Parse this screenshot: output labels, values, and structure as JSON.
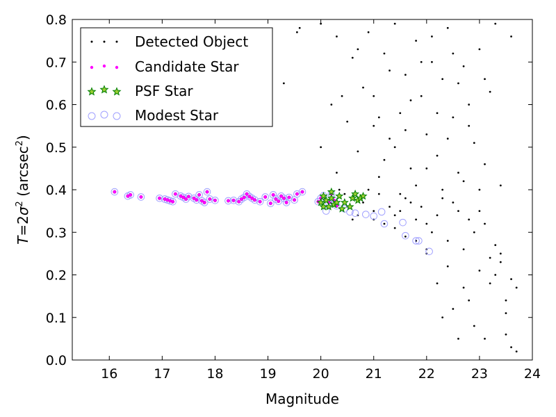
{
  "chart_data": {
    "type": "scatter",
    "xlabel": "Magnitude",
    "ylabel": {
      "prefix": "T",
      "equals": "=",
      "expr_coef": "2",
      "expr_var": "σ",
      "expr_exp": "2",
      "unit_open": " (arcsec",
      "unit_exp": "2",
      "unit_close": ")"
    },
    "xlim": [
      15.3,
      24.0
    ],
    "ylim": [
      0.0,
      0.8
    ],
    "xticks": [
      "16",
      "17",
      "18",
      "19",
      "20",
      "21",
      "22",
      "23",
      "24"
    ],
    "yticks": [
      "0.0",
      "0.1",
      "0.2",
      "0.3",
      "0.4",
      "0.5",
      "0.6",
      "0.7",
      "0.8"
    ],
    "grid": false,
    "legend_position": "upper-left",
    "legend": [
      "Detected Object",
      "Candidate Star",
      "PSF Star",
      "Modest Star"
    ],
    "colors": {
      "detected": "#000000",
      "candidate": "#ff00ff",
      "psf_edge": "#007f00",
      "psf_face": "#9acd32",
      "modest": "#9f9fff"
    },
    "series": [
      {
        "name": "Detected Object",
        "marker": "dot",
        "points": [
          [
            19.55,
            0.77
          ],
          [
            19.6,
            0.78
          ],
          [
            19.3,
            0.65
          ],
          [
            20.0,
            0.5
          ],
          [
            20.0,
            0.79
          ],
          [
            20.2,
            0.6
          ],
          [
            20.3,
            0.76
          ],
          [
            20.4,
            0.62
          ],
          [
            20.6,
            0.71
          ],
          [
            20.7,
            0.49
          ],
          [
            20.8,
            0.64
          ],
          [
            20.9,
            0.77
          ],
          [
            21.0,
            0.55
          ],
          [
            21.1,
            0.43
          ],
          [
            21.2,
            0.72
          ],
          [
            21.3,
            0.52
          ],
          [
            21.4,
            0.79
          ],
          [
            21.5,
            0.58
          ],
          [
            21.6,
            0.67
          ],
          [
            21.7,
            0.45
          ],
          [
            21.8,
            0.75
          ],
          [
            21.9,
            0.62
          ],
          [
            22.0,
            0.53
          ],
          [
            22.1,
            0.7
          ],
          [
            22.2,
            0.48
          ],
          [
            22.3,
            0.66
          ],
          [
            22.4,
            0.78
          ],
          [
            22.5,
            0.57
          ],
          [
            22.6,
            0.44
          ],
          [
            22.7,
            0.69
          ],
          [
            22.8,
            0.6
          ],
          [
            22.9,
            0.51
          ],
          [
            23.0,
            0.73
          ],
          [
            23.1,
            0.46
          ],
          [
            23.2,
            0.63
          ],
          [
            23.3,
            0.79
          ],
          [
            23.4,
            0.41
          ],
          [
            23.6,
            0.76
          ],
          [
            23.7,
            0.17
          ],
          [
            20.3,
            0.44
          ],
          [
            20.5,
            0.56
          ],
          [
            20.7,
            0.73
          ],
          [
            20.9,
            0.4
          ],
          [
            21.0,
            0.62
          ],
          [
            21.2,
            0.47
          ],
          [
            21.3,
            0.68
          ],
          [
            21.5,
            0.39
          ],
          [
            21.6,
            0.54
          ],
          [
            21.8,
            0.41
          ],
          [
            21.9,
            0.7
          ],
          [
            22.0,
            0.45
          ],
          [
            22.2,
            0.58
          ],
          [
            22.3,
            0.4
          ],
          [
            22.4,
            0.52
          ],
          [
            22.6,
            0.65
          ],
          [
            22.7,
            0.42
          ],
          [
            22.8,
            0.55
          ],
          [
            23.0,
            0.4
          ],
          [
            23.1,
            0.66
          ],
          [
            22.1,
            0.76
          ],
          [
            21.7,
            0.61
          ],
          [
            22.5,
            0.72
          ],
          [
            21.1,
            0.57
          ],
          [
            21.4,
            0.5
          ],
          [
            20.8,
            0.37
          ],
          [
            21.0,
            0.35
          ],
          [
            21.3,
            0.36
          ],
          [
            21.6,
            0.38
          ],
          [
            21.9,
            0.36
          ],
          [
            22.2,
            0.34
          ],
          [
            22.5,
            0.37
          ],
          [
            22.8,
            0.33
          ],
          [
            23.0,
            0.35
          ],
          [
            21.1,
            0.39
          ],
          [
            21.4,
            0.34
          ],
          [
            21.7,
            0.37
          ],
          [
            22.0,
            0.32
          ],
          [
            22.3,
            0.38
          ],
          [
            22.6,
            0.35
          ],
          [
            22.9,
            0.3
          ],
          [
            23.1,
            0.32
          ],
          [
            22.4,
            0.28
          ],
          [
            22.7,
            0.26
          ],
          [
            23.2,
            0.24
          ],
          [
            22.1,
            0.3
          ],
          [
            21.8,
            0.33
          ],
          [
            21.5,
            0.35
          ],
          [
            22.0,
            0.25
          ],
          [
            22.2,
            0.18
          ],
          [
            22.3,
            0.1
          ],
          [
            22.5,
            0.12
          ],
          [
            22.6,
            0.05
          ],
          [
            22.7,
            0.17
          ],
          [
            22.9,
            0.08
          ],
          [
            23.0,
            0.21
          ],
          [
            23.1,
            0.05
          ],
          [
            23.3,
            0.27
          ],
          [
            23.4,
            0.23
          ],
          [
            23.5,
            0.14
          ],
          [
            23.5,
            0.11
          ],
          [
            23.6,
            0.19
          ],
          [
            23.6,
            0.03
          ],
          [
            23.7,
            0.02
          ],
          [
            23.4,
            0.25
          ],
          [
            23.2,
            0.18
          ],
          [
            22.8,
            0.14
          ],
          [
            22.4,
            0.22
          ],
          [
            23.3,
            0.2
          ],
          [
            23.5,
            0.06
          ],
          [
            20.7,
            0.34
          ],
          [
            21.0,
            0.33
          ],
          [
            21.2,
            0.32
          ],
          [
            21.6,
            0.29
          ],
          [
            21.8,
            0.28
          ],
          [
            22.0,
            0.26
          ],
          [
            21.4,
            0.31
          ],
          [
            20.5,
            0.36
          ],
          [
            20.2,
            0.37
          ],
          [
            20.6,
            0.33
          ],
          [
            20.45,
            0.39
          ],
          [
            20.35,
            0.4
          ]
        ]
      },
      {
        "name": "Candidate Star",
        "marker": "small-circle",
        "points": [
          [
            16.1,
            0.395
          ],
          [
            16.35,
            0.385
          ],
          [
            16.4,
            0.388
          ],
          [
            16.6,
            0.383
          ],
          [
            16.95,
            0.38
          ],
          [
            17.05,
            0.378
          ],
          [
            17.1,
            0.376
          ],
          [
            17.15,
            0.374
          ],
          [
            17.2,
            0.372
          ],
          [
            17.25,
            0.39
          ],
          [
            17.35,
            0.385
          ],
          [
            17.4,
            0.382
          ],
          [
            17.45,
            0.378
          ],
          [
            17.5,
            0.384
          ],
          [
            17.6,
            0.38
          ],
          [
            17.65,
            0.376
          ],
          [
            17.7,
            0.388
          ],
          [
            17.75,
            0.374
          ],
          [
            17.8,
            0.37
          ],
          [
            17.85,
            0.395
          ],
          [
            17.9,
            0.378
          ],
          [
            18.0,
            0.375
          ],
          [
            18.25,
            0.374
          ],
          [
            18.35,
            0.375
          ],
          [
            18.45,
            0.372
          ],
          [
            18.5,
            0.378
          ],
          [
            18.55,
            0.382
          ],
          [
            18.6,
            0.39
          ],
          [
            18.65,
            0.384
          ],
          [
            18.7,
            0.38
          ],
          [
            18.75,
            0.376
          ],
          [
            18.85,
            0.372
          ],
          [
            18.95,
            0.383
          ],
          [
            19.05,
            0.368
          ],
          [
            19.1,
            0.388
          ],
          [
            19.15,
            0.378
          ],
          [
            19.2,
            0.373
          ],
          [
            19.25,
            0.385
          ],
          [
            19.3,
            0.38
          ],
          [
            19.35,
            0.37
          ],
          [
            19.4,
            0.382
          ],
          [
            19.5,
            0.376
          ],
          [
            19.55,
            0.39
          ],
          [
            19.65,
            0.395
          ],
          [
            19.95,
            0.372
          ],
          [
            20.0,
            0.38
          ],
          [
            20.05,
            0.386
          ],
          [
            20.15,
            0.37
          ],
          [
            20.2,
            0.39
          ],
          [
            20.25,
            0.375
          ],
          [
            20.3,
            0.362
          ]
        ]
      },
      {
        "name": "PSF Star",
        "marker": "star",
        "points": [
          [
            20.0,
            0.37
          ],
          [
            20.05,
            0.385
          ],
          [
            20.1,
            0.375
          ],
          [
            20.15,
            0.36
          ],
          [
            20.2,
            0.38
          ],
          [
            20.2,
            0.395
          ],
          [
            20.25,
            0.365
          ],
          [
            20.3,
            0.37
          ],
          [
            20.35,
            0.385
          ],
          [
            20.4,
            0.355
          ],
          [
            20.45,
            0.37
          ],
          [
            20.55,
            0.36
          ],
          [
            20.6,
            0.38
          ],
          [
            20.65,
            0.39
          ],
          [
            20.7,
            0.375
          ],
          [
            20.75,
            0.38
          ],
          [
            20.8,
            0.385
          ],
          [
            20.05,
            0.36
          ]
        ]
      },
      {
        "name": "Modest Star",
        "marker": "large-circle",
        "points": [
          [
            16.1,
            0.395
          ],
          [
            16.35,
            0.385
          ],
          [
            16.4,
            0.388
          ],
          [
            16.6,
            0.383
          ],
          [
            16.95,
            0.38
          ],
          [
            17.05,
            0.378
          ],
          [
            17.1,
            0.376
          ],
          [
            17.15,
            0.374
          ],
          [
            17.2,
            0.372
          ],
          [
            17.25,
            0.39
          ],
          [
            17.35,
            0.385
          ],
          [
            17.4,
            0.382
          ],
          [
            17.45,
            0.378
          ],
          [
            17.5,
            0.384
          ],
          [
            17.6,
            0.38
          ],
          [
            17.65,
            0.376
          ],
          [
            17.7,
            0.388
          ],
          [
            17.75,
            0.374
          ],
          [
            17.8,
            0.37
          ],
          [
            17.85,
            0.395
          ],
          [
            17.9,
            0.378
          ],
          [
            18.0,
            0.375
          ],
          [
            18.25,
            0.374
          ],
          [
            18.35,
            0.375
          ],
          [
            18.45,
            0.372
          ],
          [
            18.5,
            0.378
          ],
          [
            18.55,
            0.382
          ],
          [
            18.6,
            0.39
          ],
          [
            18.65,
            0.384
          ],
          [
            18.7,
            0.38
          ],
          [
            18.75,
            0.376
          ],
          [
            18.85,
            0.372
          ],
          [
            18.95,
            0.383
          ],
          [
            19.05,
            0.368
          ],
          [
            19.1,
            0.388
          ],
          [
            19.15,
            0.378
          ],
          [
            19.2,
            0.373
          ],
          [
            19.25,
            0.385
          ],
          [
            19.3,
            0.38
          ],
          [
            19.35,
            0.37
          ],
          [
            19.4,
            0.382
          ],
          [
            19.5,
            0.376
          ],
          [
            19.55,
            0.39
          ],
          [
            19.65,
            0.395
          ],
          [
            19.95,
            0.372
          ],
          [
            20.0,
            0.38
          ],
          [
            20.05,
            0.386
          ],
          [
            20.15,
            0.37
          ],
          [
            20.2,
            0.39
          ],
          [
            20.25,
            0.375
          ],
          [
            20.3,
            0.362
          ],
          [
            20.45,
            0.355
          ],
          [
            20.55,
            0.348
          ],
          [
            20.65,
            0.345
          ],
          [
            20.85,
            0.342
          ],
          [
            21.0,
            0.338
          ],
          [
            21.15,
            0.348
          ],
          [
            21.2,
            0.32
          ],
          [
            21.55,
            0.323
          ],
          [
            21.6,
            0.292
          ],
          [
            21.8,
            0.28
          ],
          [
            21.85,
            0.28
          ],
          [
            22.05,
            0.255
          ],
          [
            20.1,
            0.35
          ]
        ]
      }
    ]
  }
}
